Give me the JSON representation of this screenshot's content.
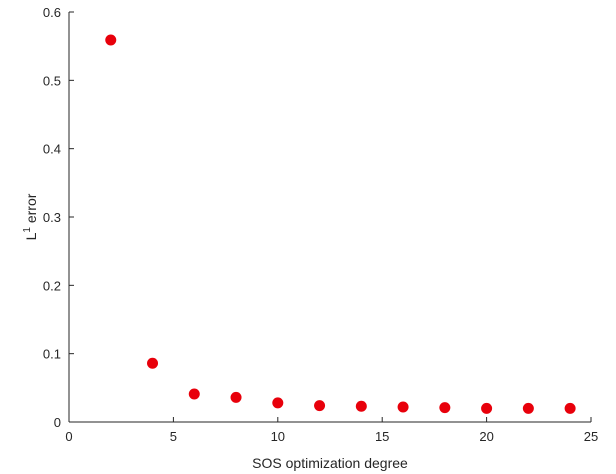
{
  "chart_data": {
    "type": "scatter",
    "title": "",
    "xlabel": "SOS optimization degree",
    "ylabel": {
      "base": "L",
      "superscript": "1",
      "rest": " error"
    },
    "xlim": [
      0,
      25
    ],
    "ylim": [
      0,
      0.6
    ],
    "xticks": [
      "0",
      "5",
      "10",
      "15",
      "20",
      "25"
    ],
    "yticks": [
      "0",
      "0.1",
      "0.2",
      "0.3",
      "0.4",
      "0.5",
      "0.6"
    ],
    "grid": false,
    "marker_color": "#e8000b",
    "series": [
      {
        "x": [
          2,
          4,
          6,
          8,
          10,
          12,
          14,
          16,
          18,
          20,
          22,
          24
        ],
        "y": [
          0.559,
          0.086,
          0.041,
          0.036,
          0.028,
          0.024,
          0.023,
          0.022,
          0.021,
          0.02,
          0.02,
          0.02
        ]
      }
    ]
  }
}
